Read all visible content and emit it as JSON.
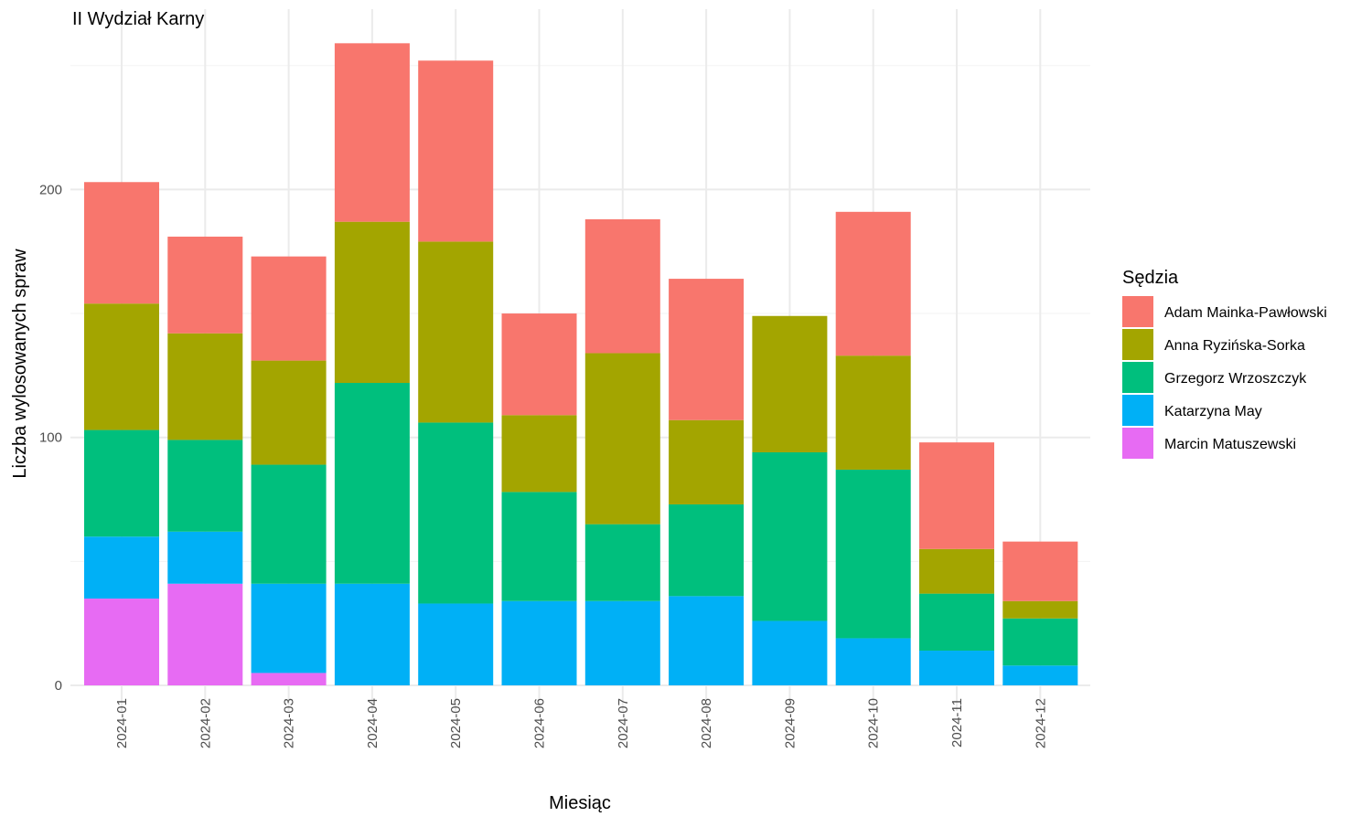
{
  "chart_data": {
    "type": "bar",
    "stacked": true,
    "title": "II Wydział Karny",
    "xlabel": "Miesiąc",
    "ylabel": "Liczba wylosowanych spraw",
    "ylim": [
      0,
      260
    ],
    "yticks": [
      0,
      100,
      200
    ],
    "grid": true,
    "legend_title": "Sędzia",
    "legend_position": "right",
    "categories": [
      "2024-01",
      "2024-02",
      "2024-03",
      "2024-04",
      "2024-05",
      "2024-06",
      "2024-07",
      "2024-08",
      "2024-09",
      "2024-10",
      "2024-11",
      "2024-12"
    ],
    "series": [
      {
        "name": "Marcin Matuszewski",
        "color": "#E76BF3",
        "values": [
          35,
          41,
          5,
          0,
          0,
          0,
          0,
          0,
          0,
          0,
          0,
          0
        ]
      },
      {
        "name": "Katarzyna May",
        "color": "#00B0F6",
        "values": [
          25,
          21,
          36,
          41,
          33,
          34,
          34,
          36,
          26,
          19,
          14,
          8
        ]
      },
      {
        "name": "Grzegorz Wrzoszczyk",
        "color": "#00BF7D",
        "values": [
          43,
          37,
          48,
          81,
          73,
          44,
          31,
          37,
          68,
          68,
          23,
          19
        ]
      },
      {
        "name": "Anna Ryzińska-Sorka",
        "color": "#A3A500",
        "values": [
          51,
          43,
          42,
          65,
          73,
          31,
          69,
          34,
          55,
          46,
          18,
          7
        ]
      },
      {
        "name": "Adam Mainka-Pawłowski",
        "color": "#F8766D",
        "values": [
          49,
          39,
          42,
          72,
          73,
          41,
          54,
          57,
          0,
          58,
          43,
          24
        ]
      }
    ],
    "legend_order": [
      "Adam Mainka-Pawłowski",
      "Anna Ryzińska-Sorka",
      "Grzegorz Wrzoszczyk",
      "Katarzyna May",
      "Marcin Matuszewski"
    ]
  }
}
